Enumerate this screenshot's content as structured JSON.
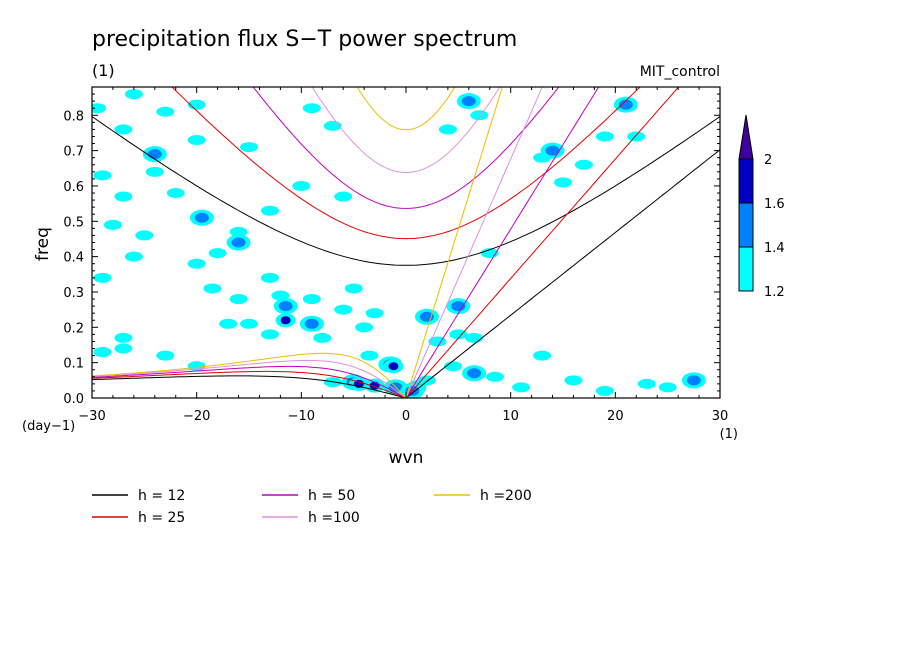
{
  "chart_data": {
    "type": "heatmap",
    "title": "precipitation flux S−T power spectrum",
    "subtitle_units": "(1)",
    "run_label": "MIT_control",
    "xlabel": "wvn",
    "x_units": "(1)",
    "ylabel": "freq",
    "y_units": "(day−1)",
    "xlim": [
      -30,
      30
    ],
    "ylim": [
      0,
      0.88
    ],
    "x_ticks": [
      "−30",
      "−20",
      "−10",
      "0",
      "10",
      "20",
      "30"
    ],
    "x_tick_values": [
      -30,
      -20,
      -10,
      0,
      10,
      20,
      30
    ],
    "y_ticks": [
      "0.0",
      "0.1",
      "0.2",
      "0.3",
      "0.4",
      "0.5",
      "0.6",
      "0.7",
      "0.8"
    ],
    "y_tick_values": [
      0,
      0.1,
      0.2,
      0.3,
      0.4,
      0.5,
      0.6,
      0.7,
      0.8
    ],
    "colorbar": {
      "levels": [
        "1.2",
        "1.4",
        "1.6",
        "2"
      ],
      "level_values": [
        1.2,
        1.4,
        1.6,
        2.0
      ],
      "colors": [
        "#00ffff",
        "#0080ff",
        "#0000c0",
        "#4000a0"
      ]
    },
    "dispersion_curves": [
      {
        "label": "h = 12",
        "h": 12,
        "color": "#000000"
      },
      {
        "label": "h = 25",
        "h": 25,
        "color": "#e00000"
      },
      {
        "label": "h = 50",
        "h": 50,
        "color": "#c000c0"
      },
      {
        "label": "h =100",
        "h": 100,
        "color": "#e090e0"
      },
      {
        "label": "h =200",
        "h": 200,
        "color": "#e8c000"
      }
    ],
    "power_blobs": [
      {
        "x": -29.5,
        "y": 0.82,
        "level": 0
      },
      {
        "x": -27,
        "y": 0.76,
        "level": 0
      },
      {
        "x": -26,
        "y": 0.86,
        "level": 0
      },
      {
        "x": -23,
        "y": 0.81,
        "level": 0
      },
      {
        "x": -20,
        "y": 0.83,
        "level": 0
      },
      {
        "x": -29,
        "y": 0.63,
        "level": 0
      },
      {
        "x": -27,
        "y": 0.57,
        "level": 0
      },
      {
        "x": -24,
        "y": 0.69,
        "level": 1
      },
      {
        "x": -24,
        "y": 0.64,
        "level": 0
      },
      {
        "x": -20,
        "y": 0.73,
        "level": 0
      },
      {
        "x": -15,
        "y": 0.71,
        "level": 0
      },
      {
        "x": -19.5,
        "y": 0.51,
        "level": 1
      },
      {
        "x": -22,
        "y": 0.58,
        "level": 0
      },
      {
        "x": -28,
        "y": 0.49,
        "level": 0
      },
      {
        "x": -25,
        "y": 0.46,
        "level": 0
      },
      {
        "x": -16,
        "y": 0.47,
        "level": 0
      },
      {
        "x": -16,
        "y": 0.44,
        "level": 1
      },
      {
        "x": -13,
        "y": 0.53,
        "level": 0
      },
      {
        "x": -9,
        "y": 0.82,
        "level": 0
      },
      {
        "x": -7,
        "y": 0.77,
        "level": 0
      },
      {
        "x": -10,
        "y": 0.6,
        "level": 0
      },
      {
        "x": -6,
        "y": 0.57,
        "level": 0
      },
      {
        "x": -20,
        "y": 0.38,
        "level": 0
      },
      {
        "x": -18,
        "y": 0.41,
        "level": 0
      },
      {
        "x": -26,
        "y": 0.4,
        "level": 0
      },
      {
        "x": -29,
        "y": 0.34,
        "level": 0
      },
      {
        "x": -18.5,
        "y": 0.31,
        "level": 0
      },
      {
        "x": -13,
        "y": 0.34,
        "level": 0
      },
      {
        "x": -16,
        "y": 0.28,
        "level": 0
      },
      {
        "x": -12,
        "y": 0.29,
        "level": 0
      },
      {
        "x": -9,
        "y": 0.28,
        "level": 0
      },
      {
        "x": -5,
        "y": 0.31,
        "level": 0
      },
      {
        "x": -17,
        "y": 0.21,
        "level": 0
      },
      {
        "x": -15,
        "y": 0.21,
        "level": 0
      },
      {
        "x": -11.5,
        "y": 0.26,
        "level": 1
      },
      {
        "x": -11.5,
        "y": 0.22,
        "level": 2
      },
      {
        "x": -9,
        "y": 0.21,
        "level": 1
      },
      {
        "x": -6,
        "y": 0.25,
        "level": 0
      },
      {
        "x": -3,
        "y": 0.24,
        "level": 0
      },
      {
        "x": -4,
        "y": 0.2,
        "level": 0
      },
      {
        "x": -13,
        "y": 0.18,
        "level": 0
      },
      {
        "x": -8,
        "y": 0.17,
        "level": 0
      },
      {
        "x": -29,
        "y": 0.13,
        "level": 0
      },
      {
        "x": -27,
        "y": 0.14,
        "level": 0
      },
      {
        "x": -23,
        "y": 0.12,
        "level": 0
      },
      {
        "x": -20,
        "y": 0.09,
        "level": 0
      },
      {
        "x": -27,
        "y": 0.17,
        "level": 0
      },
      {
        "x": -3.5,
        "y": 0.12,
        "level": 0
      },
      {
        "x": -1.5,
        "y": 0.095,
        "level": 1
      },
      {
        "x": -1.2,
        "y": 0.09,
        "level": 2
      },
      {
        "x": -5,
        "y": 0.045,
        "level": 1
      },
      {
        "x": -4.5,
        "y": 0.04,
        "level": 2
      },
      {
        "x": -3,
        "y": 0.035,
        "level": 2
      },
      {
        "x": -7,
        "y": 0.045,
        "level": 0
      },
      {
        "x": -1,
        "y": 0.03,
        "level": 1
      },
      {
        "x": 1,
        "y": 0.03,
        "level": 2
      },
      {
        "x": 0.6,
        "y": 0.02,
        "level": 1
      },
      {
        "x": 2,
        "y": 0.05,
        "level": 0
      },
      {
        "x": 2,
        "y": 0.23,
        "level": 1
      },
      {
        "x": 3,
        "y": 0.16,
        "level": 0
      },
      {
        "x": 5,
        "y": 0.26,
        "level": 1
      },
      {
        "x": 5,
        "y": 0.18,
        "level": 0
      },
      {
        "x": 6.5,
        "y": 0.17,
        "level": 0
      },
      {
        "x": 4.5,
        "y": 0.09,
        "level": 0
      },
      {
        "x": 6.5,
        "y": 0.07,
        "level": 1
      },
      {
        "x": 8.5,
        "y": 0.06,
        "level": 0
      },
      {
        "x": 6,
        "y": 0.84,
        "level": 1
      },
      {
        "x": 7,
        "y": 0.8,
        "level": 0
      },
      {
        "x": 4,
        "y": 0.76,
        "level": 0
      },
      {
        "x": 13,
        "y": 0.68,
        "level": 0
      },
      {
        "x": 14,
        "y": 0.7,
        "level": 1
      },
      {
        "x": 15,
        "y": 0.61,
        "level": 0
      },
      {
        "x": 17,
        "y": 0.66,
        "level": 0
      },
      {
        "x": 21,
        "y": 0.83,
        "level": 1
      },
      {
        "x": 19,
        "y": 0.74,
        "level": 0
      },
      {
        "x": 22,
        "y": 0.74,
        "level": 0
      },
      {
        "x": 13,
        "y": 0.12,
        "level": 0
      },
      {
        "x": 11,
        "y": 0.03,
        "level": 0
      },
      {
        "x": 16,
        "y": 0.05,
        "level": 0
      },
      {
        "x": 19,
        "y": 0.02,
        "level": 0
      },
      {
        "x": 23,
        "y": 0.04,
        "level": 0
      },
      {
        "x": 27.5,
        "y": 0.05,
        "level": 1
      },
      {
        "x": 25,
        "y": 0.03,
        "level": 0
      },
      {
        "x": 8,
        "y": 0.41,
        "level": 0
      }
    ]
  }
}
